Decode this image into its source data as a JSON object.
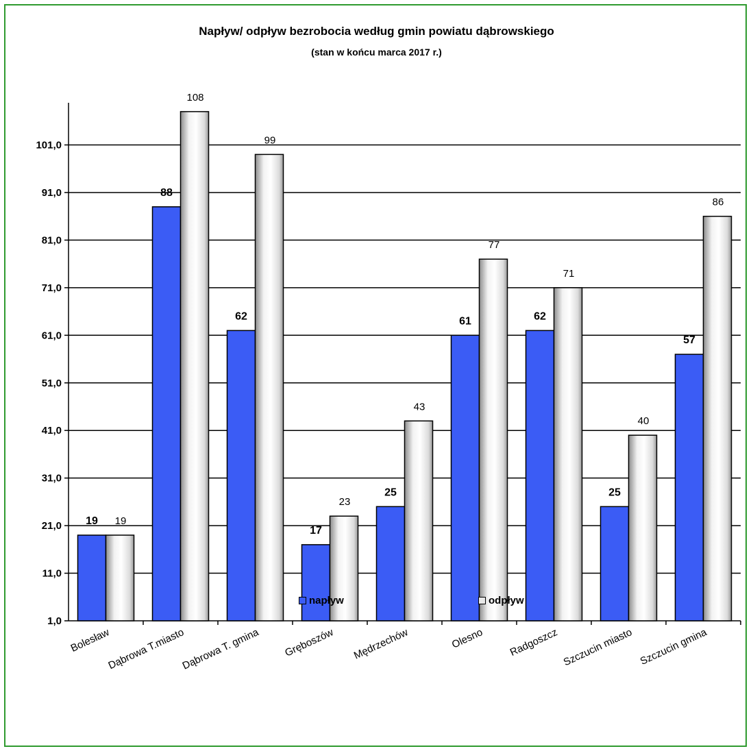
{
  "chart_data": {
    "type": "bar",
    "title": "Napływ/ odpływ bezrobocia według gmin powiatu dąbrowskiego",
    "subtitle": "(stan w końcu marca 2017 r.)",
    "categories": [
      "Bolesław",
      "Dąbrowa T.miasto",
      "Dąbrowa T. gmina",
      "Gręboszów",
      "Mędrzechów",
      "Olesno",
      "Radgoszcz",
      "Szczucin miasto",
      "Szczucin gmina"
    ],
    "series": [
      {
        "name": "napływ",
        "values": [
          19,
          88,
          62,
          17,
          25,
          61,
          62,
          25,
          57
        ],
        "color": "#3b5cf5"
      },
      {
        "name": "odpływ",
        "values": [
          19,
          108,
          99,
          23,
          43,
          77,
          71,
          40,
          86
        ],
        "color": "#d9d9d9"
      }
    ],
    "yticks": [
      "1,0",
      "11,0",
      "21,0",
      "31,0",
      "41,0",
      "51,0",
      "61,0",
      "71,0",
      "81,0",
      "91,0",
      "101,0"
    ],
    "ylim": [
      1,
      110
    ],
    "grid": true,
    "legend_position": "bottom",
    "frame_color": "#2e9a2e"
  }
}
